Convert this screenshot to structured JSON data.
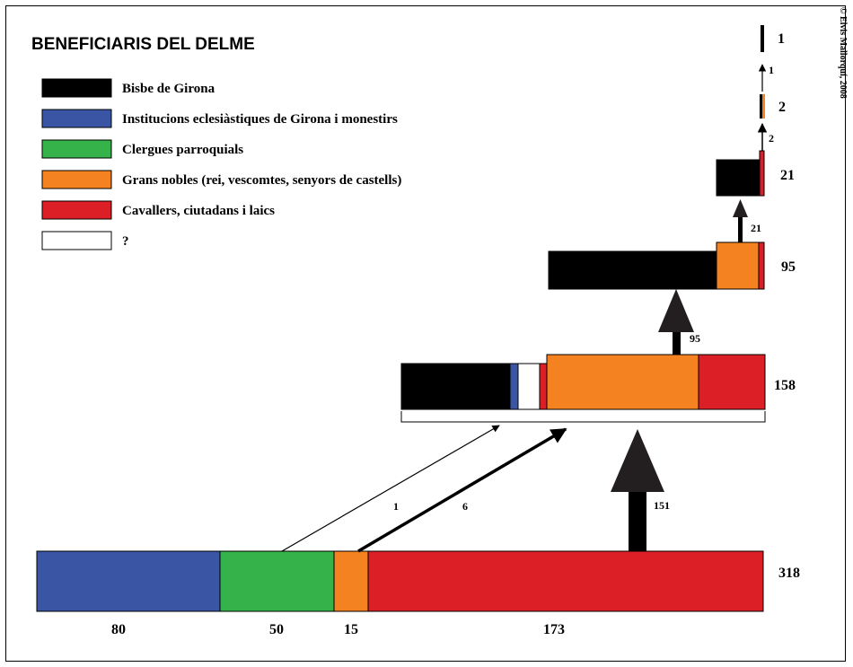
{
  "title": "BENEFICIARIS DEL DELME",
  "copyright": "© Elvis Mallorquí, 2008",
  "legend": [
    {
      "label": "Bisbe de Girona",
      "color": "#000000"
    },
    {
      "label": "Institucions eclesiàstiques de Girona i monestirs",
      "color": "#3a55a4"
    },
    {
      "label": "Clergues parroquials",
      "color": "#35b34a"
    },
    {
      "label": "Grans nobles (rei, vescomtes, senyors de castells)",
      "color": "#f58220"
    },
    {
      "label": "Cavallers, ciutadans i laics",
      "color": "#dc1f26"
    },
    {
      "label": "?",
      "color": "#ffffff"
    }
  ],
  "levels": [
    {
      "total": "318",
      "segment_labels": [
        "80",
        "50",
        "15",
        "173"
      ]
    },
    {
      "total": "158"
    },
    {
      "total": "95"
    },
    {
      "total": "21"
    },
    {
      "total": "2"
    },
    {
      "total": "1"
    }
  ],
  "flows": {
    "l1_cleric": "1",
    "l1_noble": "6",
    "l1_main": "151",
    "l2": "95",
    "l3": "21",
    "l4": "2",
    "l5": "1"
  }
}
